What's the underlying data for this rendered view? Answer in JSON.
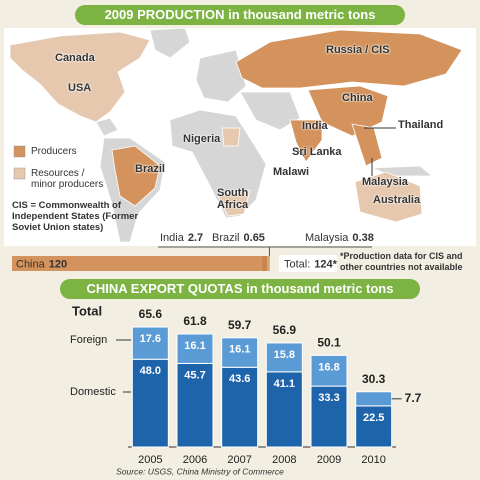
{
  "map": {
    "labels": [
      "Canada",
      "USA",
      "Russia / CIS",
      "China",
      "Nigeria",
      "India",
      "Thailand",
      "Sri Lanka",
      "Malawi",
      "Brazil",
      "South Africa",
      "Malaysia",
      "Australia"
    ],
    "legend": [
      {
        "label": "Producers",
        "color": "#d4935c"
      },
      {
        "label": "Resources / minor producers",
        "color": "#e6c8ae"
      }
    ],
    "note": "CIS = Commonwealth of Independent States (Former Soviet Union states)"
  },
  "chart_data": [
    {
      "type": "bar",
      "orientation": "horizontal",
      "stacked": true,
      "title": "2009 PRODUCTION in thousand metric tons",
      "series": [
        {
          "name": "China",
          "color": "#d4935c",
          "values": [
            120
          ]
        },
        {
          "name": "India",
          "color": "#c9844f",
          "values": [
            2.7
          ]
        },
        {
          "name": "Brazil",
          "color": "#e0a777",
          "values": [
            0.65
          ]
        },
        {
          "name": "Malaysia",
          "color": "#b8773f",
          "values": [
            0.38
          ]
        }
      ],
      "total": {
        "label": "Total:",
        "value": 124,
        "value_label": "124*"
      },
      "footnote": "*Production data for CIS and other countries not available"
    },
    {
      "type": "bar",
      "stacked": true,
      "title": "CHINA EXPORT QUOTAS in thousand metric tons",
      "categories": [
        "2005",
        "2006",
        "2007",
        "2008",
        "2009",
        "2010"
      ],
      "series": [
        {
          "name": "Domestic",
          "color": "#1e64ab",
          "values": [
            48.0,
            45.7,
            43.6,
            41.1,
            33.3,
            22.5
          ],
          "value_labels": [
            "48.0",
            "45.7",
            "43.6",
            "41.1",
            "33.3",
            "22.5"
          ]
        },
        {
          "name": "Foreign",
          "color": "#5b9bd5",
          "values": [
            17.6,
            16.1,
            16.1,
            15.8,
            16.8,
            7.7
          ]
        }
      ],
      "total_label": "Total",
      "totals": [
        65.6,
        61.8,
        59.7,
        56.9,
        50.1,
        30.3
      ],
      "ylim": [
        0,
        70
      ],
      "source": "Source: USGS, China Ministry of Commerce"
    }
  ]
}
